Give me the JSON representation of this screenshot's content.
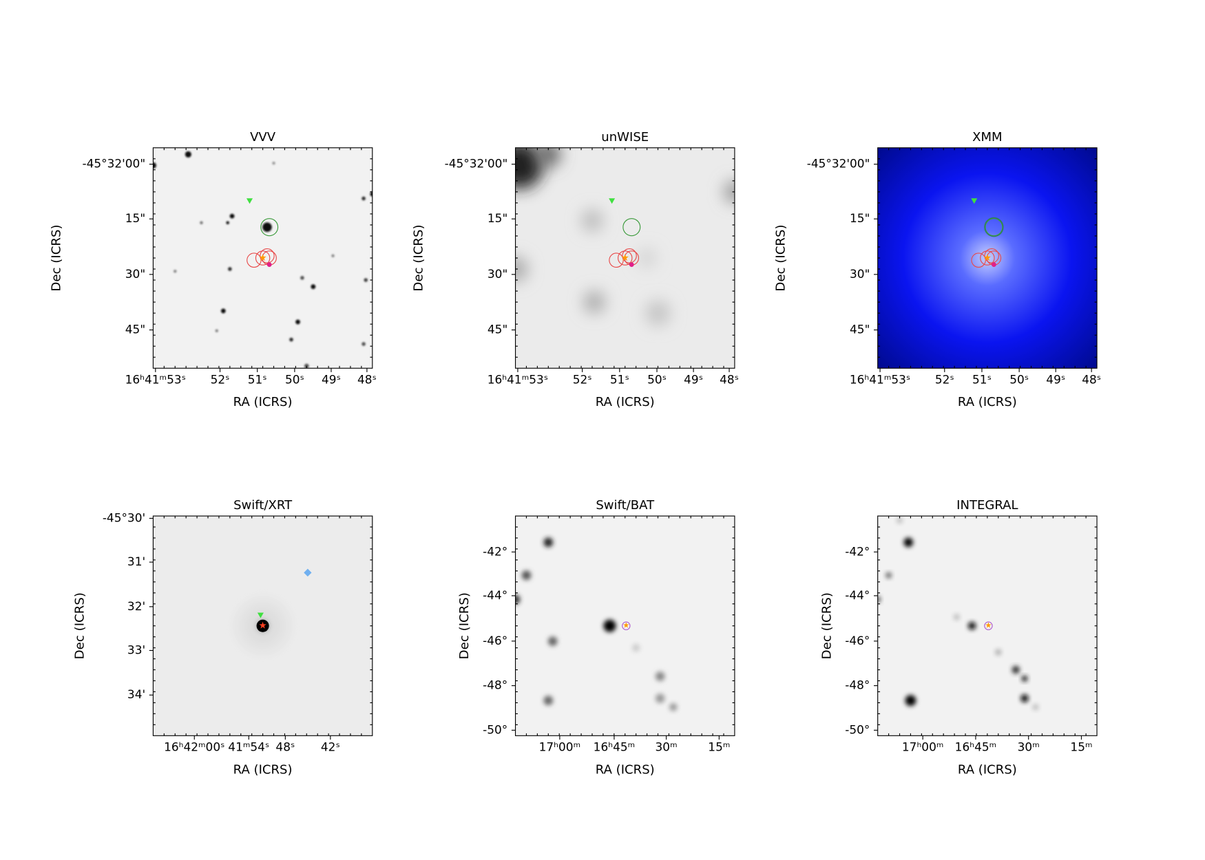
{
  "panels": [
    {
      "title": "VVV",
      "xlabel": "RA (ICRS)",
      "ylabel": "Dec (ICRS)",
      "xticks": [
        "16ʰ41ᵐ53ˢ",
        "52ˢ",
        "51ˢ",
        "50ˢ",
        "49ˢ",
        "48ˢ"
      ],
      "yticks": [
        "-45°32'00\"",
        "15\"",
        "30\"",
        "45\""
      ]
    },
    {
      "title": "unWISE",
      "xlabel": "RA (ICRS)",
      "ylabel": "Dec (ICRS)",
      "xticks": [
        "16ʰ41ᵐ53ˢ",
        "52ˢ",
        "51ˢ",
        "50ˢ",
        "49ˢ",
        "48ˢ"
      ],
      "yticks": [
        "-45°32'00\"",
        "15\"",
        "30\"",
        "45\""
      ]
    },
    {
      "title": "XMM",
      "xlabel": "RA (ICRS)",
      "ylabel": "Dec (ICRS)",
      "xticks": [
        "16ʰ41ᵐ53ˢ",
        "52ˢ",
        "51ˢ",
        "50ˢ",
        "49ˢ",
        "48ˢ"
      ],
      "yticks": [
        "-45°32'00\"",
        "15\"",
        "30\"",
        "45\""
      ]
    },
    {
      "title": "Swift/XRT",
      "xlabel": "RA (ICRS)",
      "ylabel": "Dec (ICRS)",
      "xticks": [
        "16ʰ42ᵐ00ˢ",
        "41ᵐ54ˢ",
        "48ˢ",
        "42ˢ"
      ],
      "yticks": [
        "-45°30'",
        "31'",
        "32'",
        "33'",
        "34'"
      ]
    },
    {
      "title": "Swift/BAT",
      "xlabel": "RA (ICRS)",
      "ylabel": "Dec (ICRS)",
      "xticks": [
        "17ʰ00ᵐ",
        "16ʰ45ᵐ",
        "30ᵐ",
        "15ᵐ"
      ],
      "yticks": [
        "-42°",
        "-44°",
        "-46°",
        "-48°",
        "-50°"
      ]
    },
    {
      "title": "INTEGRAL",
      "xlabel": "RA (ICRS)",
      "ylabel": "Dec (ICRS)",
      "xticks": [
        "17ʰ00ᵐ",
        "16ʰ45ᵐ",
        "30ᵐ",
        "15ᵐ"
      ],
      "yticks": [
        "-42°",
        "-44°",
        "-46°",
        "-48°",
        "-50°"
      ]
    }
  ]
}
